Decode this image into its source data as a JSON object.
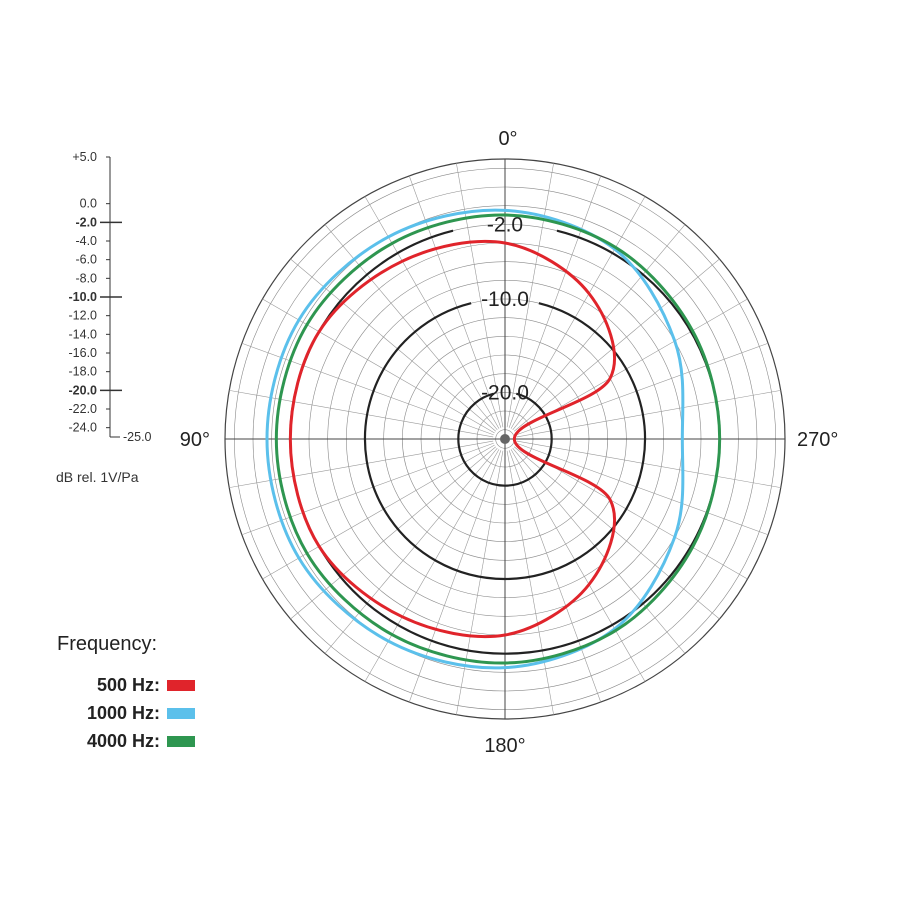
{
  "chart_data": {
    "type": "polar",
    "angle_labels": [
      "0°",
      "90°",
      "180°",
      "270°"
    ],
    "radial_axis": {
      "unit": "dB rel. 1V/Pa",
      "max": 5.0,
      "min": -25.0,
      "tick_labels": [
        "+5.0",
        "0.0",
        "-2.0",
        "-4.0",
        "-6.0",
        "-8.0",
        "-10.0",
        "-12.0",
        "-14.0",
        "-16.0",
        "-18.0",
        "-20.0",
        "-22.0",
        "-24.0",
        "-25.0"
      ],
      "major_ticks": [
        "-2.0",
        "-10.0",
        "-20.0"
      ]
    },
    "reference_rings": [
      {
        "label": "-2.0",
        "value": -2.0
      },
      {
        "label": "-10.0",
        "value": -10.0
      },
      {
        "label": "-20.0",
        "value": -20.0
      }
    ],
    "legend_title": "Frequency:",
    "series": [
      {
        "name": "500 Hz:",
        "color": "#e0242b",
        "angles": [
          0,
          30,
          60,
          90,
          120,
          150,
          180,
          210,
          240,
          270,
          300,
          330
        ],
        "values": [
          -4.0,
          -3.0,
          -2.0,
          -2.0,
          -2.0,
          -3.0,
          -4.0,
          -7.0,
          -12.0,
          -24.0,
          -12.0,
          -7.0
        ]
      },
      {
        "name": "1000 Hz:",
        "color": "#5bc0eb",
        "angles": [
          0,
          30,
          60,
          90,
          120,
          150,
          180,
          210,
          240,
          270,
          300,
          330
        ],
        "values": [
          -0.5,
          0.0,
          0.5,
          0.5,
          0.5,
          0.0,
          -0.5,
          -1.5,
          -4.0,
          -6.0,
          -4.0,
          -1.5
        ]
      },
      {
        "name": "4000 Hz:",
        "color": "#2e9650",
        "angles": [
          0,
          30,
          60,
          90,
          120,
          150,
          180,
          210,
          240,
          270,
          300,
          330
        ],
        "values": [
          -1.0,
          -0.8,
          -0.5,
          -0.5,
          -0.5,
          -0.8,
          -1.0,
          -1.3,
          -1.8,
          -2.0,
          -1.8,
          -1.3
        ]
      }
    ]
  }
}
